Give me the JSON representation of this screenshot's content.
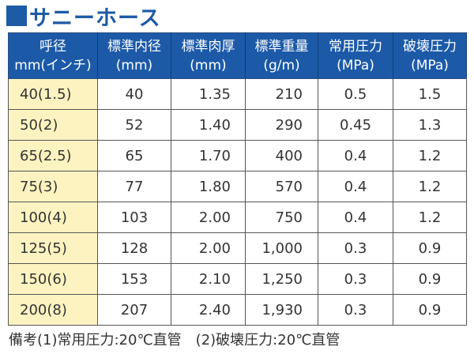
{
  "title": {
    "icon": "blue-square-bullet",
    "text": "サニーホース"
  },
  "table": {
    "headers": [
      {
        "line1": "呼径",
        "line2": "mm(インチ)"
      },
      {
        "line1": "標準内径",
        "line2": "(mm)"
      },
      {
        "line1": "標準肉厚",
        "line2": "(mm)"
      },
      {
        "line1": "標準重量",
        "line2": "(g/m)"
      },
      {
        "line1": "常用圧力",
        "line2": "(MPa)"
      },
      {
        "line1": "破壊圧力",
        "line2": "(MPa)"
      }
    ],
    "rows": [
      [
        "40(1.5)",
        "40",
        "1.35",
        "210",
        "0.5",
        "1.5"
      ],
      [
        "50(2)",
        "52",
        "1.40",
        "290",
        "0.45",
        "1.3"
      ],
      [
        "65(2.5)",
        "65",
        "1.70",
        "400",
        "0.4",
        "1.2"
      ],
      [
        "75(3)",
        "77",
        "1.80",
        "570",
        "0.4",
        "1.2"
      ],
      [
        "100(4)",
        "103",
        "2.00",
        "750",
        "0.4",
        "1.2"
      ],
      [
        "125(5)",
        "128",
        "2.00",
        "1,000",
        "0.3",
        "0.9"
      ],
      [
        "150(6)",
        "153",
        "2.10",
        "1,250",
        "0.3",
        "0.9"
      ],
      [
        "200(8)",
        "207",
        "2.40",
        "1,930",
        "0.3",
        "0.9"
      ]
    ]
  },
  "note": "備考(1)常用圧力:20℃直管　(2)破壊圧力:20℃直管",
  "colors": {
    "header_bg": "#1c5aa8",
    "title": "#1d5ba6",
    "nominal_col_bg": "#fdf3c0",
    "text": "#333333"
  }
}
